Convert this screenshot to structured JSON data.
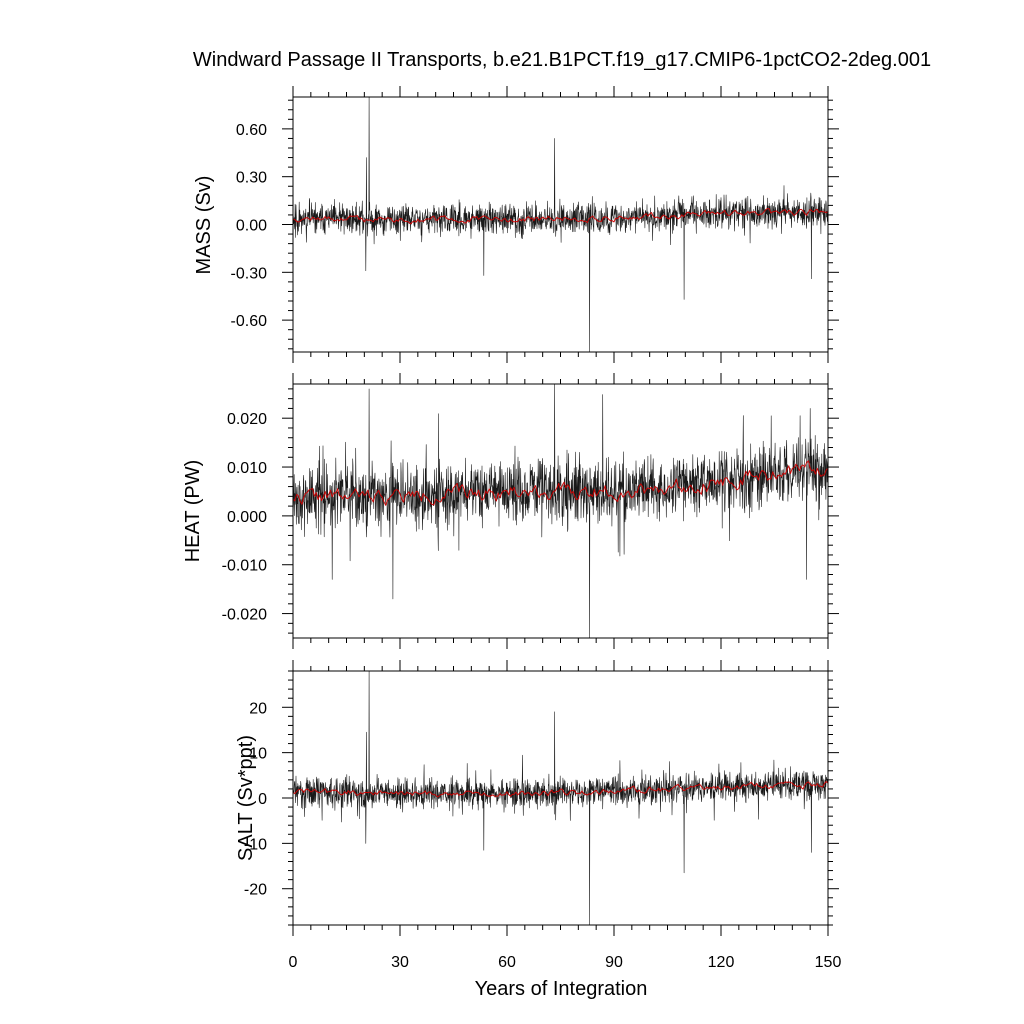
{
  "chart_data": [
    {
      "type": "line",
      "title": "Windward Passage II Transports, b.e21.B1PCT.f19_g17.CMIP6-1pctCO2-2deg.001",
      "xlabel": "",
      "ylabel": "MASS (Sv)",
      "xlim": [
        0,
        150
      ],
      "ylim": [
        -0.8,
        0.8
      ],
      "yticks": [
        -0.6,
        -0.3,
        0.0,
        0.3,
        0.6
      ],
      "ytick_labels": [
        "-0.60",
        "-0.30",
        "0.00",
        "0.30",
        "0.60"
      ],
      "xticks": [
        0,
        30,
        60,
        90,
        120,
        150
      ],
      "series": [
        {
          "color": "#000000",
          "kind": "monthly",
          "base": [
            [
              0,
              0.04
            ],
            [
              30,
              0.03
            ],
            [
              60,
              0.03
            ],
            [
              90,
              0.04
            ],
            [
              120,
              0.07
            ],
            [
              150,
              0.08
            ]
          ],
          "noise": 0.065,
          "seed": 11,
          "spikes": [
            [
              20.6,
              0.42
            ],
            [
              21.3,
              0.8
            ],
            [
              73.3,
              0.54
            ],
            [
              83.2,
              -0.8
            ],
            [
              109.7,
              -0.47
            ],
            [
              20.4,
              -0.29
            ],
            [
              53.5,
              -0.32
            ],
            [
              145.3,
              -0.34
            ]
          ]
        },
        {
          "color": "#cc0000",
          "kind": "smoothed",
          "base": [
            [
              0,
              0.04
            ],
            [
              30,
              0.03
            ],
            [
              60,
              0.03
            ],
            [
              90,
              0.04
            ],
            [
              120,
              0.07
            ],
            [
              150,
              0.08
            ]
          ],
          "noise": 0.02,
          "seed": 12
        }
      ]
    },
    {
      "type": "line",
      "ylabel": "HEAT (PW)",
      "xlim": [
        0,
        150
      ],
      "ylim": [
        -0.025,
        0.027
      ],
      "yticks": [
        -0.02,
        -0.01,
        0.0,
        0.01,
        0.02
      ],
      "ytick_labels": [
        "-0.020",
        "-0.010",
        "0.000",
        "0.010",
        "0.020"
      ],
      "xticks": [
        0,
        30,
        60,
        90,
        120,
        150
      ],
      "series": [
        {
          "color": "#000000",
          "kind": "monthly",
          "base": [
            [
              0,
              0.004
            ],
            [
              30,
              0.004
            ],
            [
              60,
              0.005
            ],
            [
              90,
              0.005
            ],
            [
              120,
              0.007
            ],
            [
              150,
              0.01
            ]
          ],
          "noise": 0.0045,
          "seed": 21,
          "spikes": [
            [
              21.3,
              0.026
            ],
            [
              73.3,
              0.027
            ],
            [
              83.2,
              -0.025
            ],
            [
              28,
              -0.017
            ],
            [
              145,
              0.022
            ],
            [
              144,
              -0.013
            ],
            [
              11,
              -0.013
            ]
          ]
        },
        {
          "color": "#cc0000",
          "kind": "smoothed",
          "base": [
            [
              0,
              0.004
            ],
            [
              30,
              0.004
            ],
            [
              60,
              0.005
            ],
            [
              90,
              0.005
            ],
            [
              120,
              0.007
            ],
            [
              150,
              0.01
            ]
          ],
          "noise": 0.0015,
          "seed": 22
        }
      ]
    },
    {
      "type": "line",
      "ylabel": "SALT (Sv*ppt)",
      "xlabel": "Years of Integration",
      "xlim": [
        0,
        150
      ],
      "ylim": [
        -28,
        28
      ],
      "yticks": [
        -20,
        -10,
        0,
        10,
        20
      ],
      "ytick_labels": [
        "-20",
        "-10",
        "0",
        "10",
        "20"
      ],
      "xticks": [
        0,
        30,
        60,
        90,
        120,
        150
      ],
      "xtick_labels": [
        "0",
        "30",
        "60",
        "90",
        "120",
        "150"
      ],
      "series": [
        {
          "color": "#000000",
          "kind": "monthly",
          "base": [
            [
              0,
              1.5
            ],
            [
              30,
              1.0
            ],
            [
              60,
              1.0
            ],
            [
              90,
              1.5
            ],
            [
              120,
              2.5
            ],
            [
              150,
              3.0
            ]
          ],
          "noise": 2.3,
          "seed": 31,
          "spikes": [
            [
              20.6,
              14.5
            ],
            [
              21.3,
              28
            ],
            [
              73.3,
              19
            ],
            [
              83.2,
              -28
            ],
            [
              109.7,
              -16.5
            ],
            [
              20.4,
              -10
            ],
            [
              53.5,
              -11.5
            ],
            [
              145.3,
              -12
            ]
          ]
        },
        {
          "color": "#cc0000",
          "kind": "smoothed",
          "base": [
            [
              0,
              1.5
            ],
            [
              30,
              1.0
            ],
            [
              60,
              1.0
            ],
            [
              90,
              1.5
            ],
            [
              120,
              2.5
            ],
            [
              150,
              3.0
            ]
          ],
          "noise": 0.7,
          "seed": 32
        }
      ]
    }
  ]
}
